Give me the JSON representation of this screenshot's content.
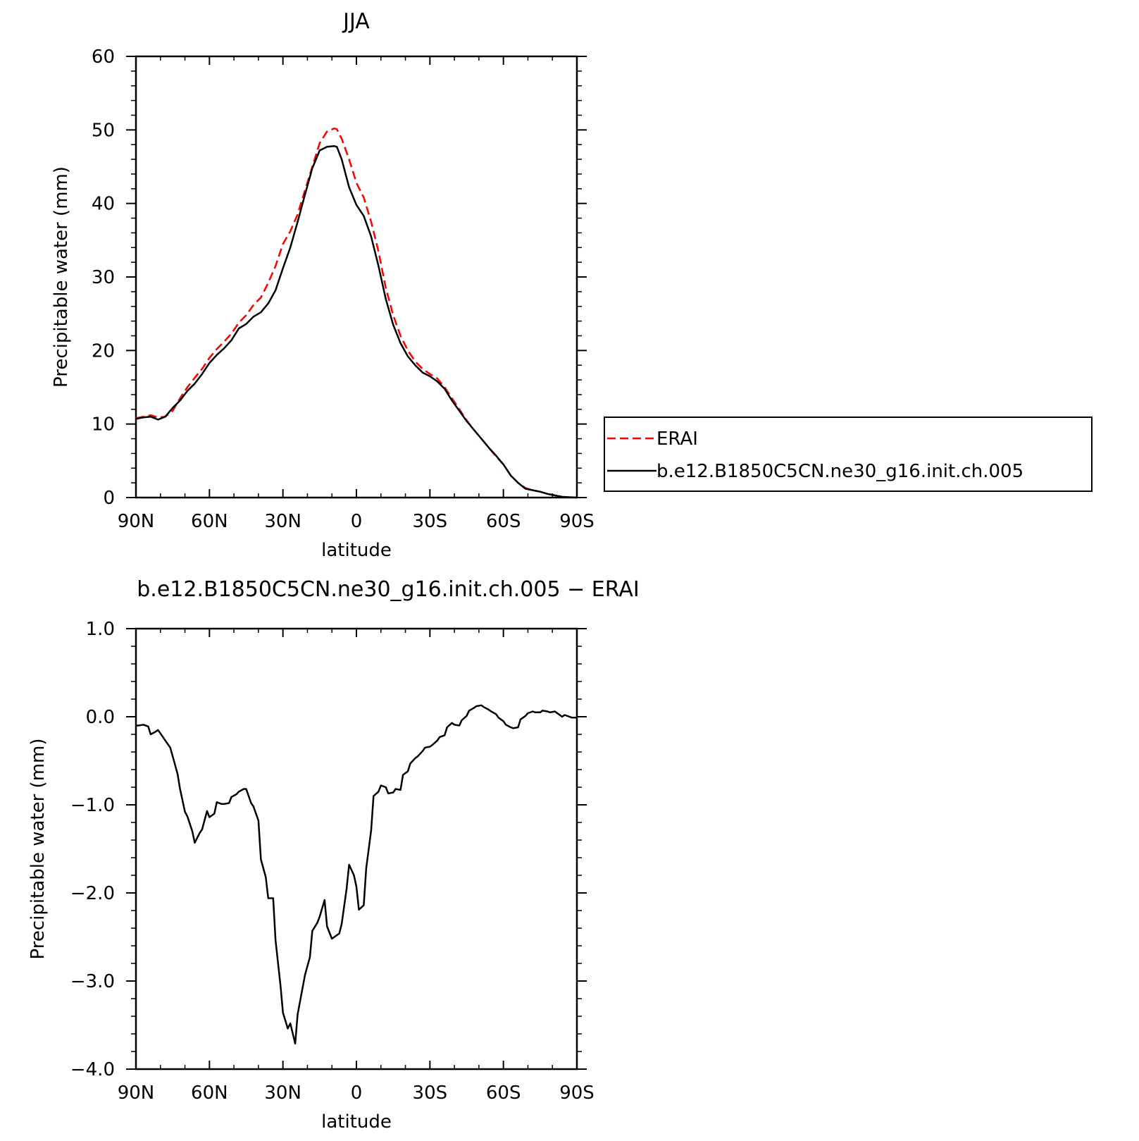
{
  "chart_data": [
    {
      "type": "line",
      "title": "JJA",
      "xlabel": "latitude",
      "ylabel": "Precipitable water (mm)",
      "xlim": [
        90,
        -90
      ],
      "ylim": [
        0,
        60
      ],
      "xticks": [
        90,
        60,
        30,
        0,
        -30,
        -60,
        -90
      ],
      "xtick_labels": [
        "90N",
        "60N",
        "30N",
        "0",
        "30S",
        "60S",
        "90S"
      ],
      "yticks": [
        0,
        10,
        20,
        30,
        40,
        50,
        60
      ],
      "ytick_labels": [
        "0",
        "10",
        "20",
        "30",
        "40",
        "50",
        "60"
      ],
      "grid": false,
      "legend": {
        "placement": "outside-right",
        "entries": [
          "ERAI",
          "b.e12.B1850C5CN.ne30_g16.init.ch.005"
        ]
      },
      "series": [
        {
          "name": "ERAI",
          "color": "#ff0000",
          "dash": "dashed",
          "x": [
            90,
            87,
            84,
            81,
            78,
            75,
            72,
            69,
            66,
            63,
            60,
            57,
            54,
            51,
            48,
            45,
            42,
            39,
            36,
            33,
            30,
            27,
            24,
            21,
            18,
            15,
            12,
            9,
            8,
            6,
            3,
            0,
            -3,
            -6,
            -9,
            -12,
            -15,
            -18,
            -21,
            -24,
            -27,
            -30,
            -33,
            -36,
            -39,
            -42,
            -45,
            -48,
            -51,
            -54,
            -57,
            -60,
            -63,
            -66,
            -69,
            -72,
            -75,
            -78,
            -81,
            -84,
            -87,
            -90
          ],
          "y": [
            10.8,
            11.0,
            11.2,
            10.9,
            11.0,
            11.8,
            13.5,
            15.0,
            16.3,
            17.5,
            19.0,
            20.2,
            21.2,
            22.3,
            23.8,
            24.8,
            26.2,
            27.2,
            29.2,
            31.5,
            34.5,
            36.2,
            38.5,
            41.8,
            45.0,
            48.2,
            49.8,
            50.2,
            50.1,
            48.8,
            46.0,
            42.8,
            40.8,
            37.5,
            33.5,
            28.5,
            24.8,
            22.0,
            20.0,
            18.5,
            17.5,
            16.8,
            16.2,
            15.0,
            13.5,
            12.0,
            10.5,
            9.2,
            8.0,
            6.8,
            5.6,
            4.5,
            3.0,
            2.0,
            1.3,
            1.0,
            0.8,
            0.5,
            0.3,
            0.1,
            0.05,
            0.0
          ]
        },
        {
          "name": "b.e12.B1850C5CN.ne30_g16.init.ch.005",
          "color": "#000000",
          "dash": "solid",
          "x": [
            90,
            87,
            84,
            81,
            78,
            75,
            72,
            69,
            66,
            63,
            60,
            57,
            54,
            51,
            48,
            45,
            42,
            39,
            36,
            33,
            30,
            27,
            24,
            21,
            18,
            15,
            12,
            9,
            8,
            6,
            3,
            0,
            -3,
            -6,
            -9,
            -12,
            -15,
            -18,
            -21,
            -24,
            -27,
            -30,
            -33,
            -36,
            -39,
            -42,
            -45,
            -48,
            -51,
            -54,
            -57,
            -60,
            -63,
            -66,
            -69,
            -72,
            -75,
            -78,
            -81,
            -84,
            -87,
            -90
          ],
          "y": [
            10.7,
            10.9,
            11.0,
            10.6,
            11.0,
            12.2,
            13.2,
            14.5,
            15.5,
            16.8,
            18.3,
            19.4,
            20.3,
            21.4,
            23.0,
            23.6,
            24.6,
            25.2,
            26.4,
            28.2,
            31.2,
            34.0,
            37.5,
            41.2,
            44.8,
            47.2,
            47.7,
            47.8,
            47.7,
            46.0,
            42.2,
            39.8,
            38.3,
            35.5,
            31.5,
            27.0,
            23.5,
            21.0,
            19.2,
            18.0,
            17.0,
            16.5,
            15.8,
            14.8,
            13.2,
            11.8,
            10.4,
            9.2,
            8.0,
            6.8,
            5.7,
            4.5,
            3.0,
            2.0,
            1.2,
            1.0,
            0.8,
            0.5,
            0.3,
            0.1,
            0.05,
            0.0
          ]
        }
      ]
    },
    {
      "type": "line",
      "title": "b.e12.B1850C5CN.ne30_g16.init.ch.005 − ERAI",
      "xlabel": "latitude",
      "ylabel": "Precipitable water (mm)",
      "xlim": [
        90,
        -90
      ],
      "ylim": [
        -4.0,
        1.0
      ],
      "xticks": [
        90,
        60,
        30,
        0,
        -30,
        -60,
        -90
      ],
      "xtick_labels": [
        "90N",
        "60N",
        "30N",
        "0",
        "30S",
        "60S",
        "90S"
      ],
      "yticks": [
        1.0,
        0.0,
        -1.0,
        -2.0,
        -3.0,
        -4.0
      ],
      "ytick_labels": [
        "1.0",
        "0.0",
        "−1.0",
        "−2.0",
        "−3.0",
        "−4.0"
      ],
      "grid": false,
      "series": [
        {
          "color": "#000000",
          "dash": "solid",
          "x": [
            90,
            89,
            87,
            85,
            84,
            82,
            81,
            79,
            78,
            76,
            75,
            73,
            72,
            70,
            69,
            67,
            66,
            64,
            63,
            61,
            60,
            58,
            57,
            55,
            54,
            52,
            51,
            49,
            48,
            46,
            45,
            43,
            42,
            40,
            39,
            37,
            36,
            34,
            33,
            31,
            30,
            28,
            27,
            25,
            24,
            22,
            21,
            19,
            18,
            16,
            15,
            13,
            12,
            10,
            9,
            7,
            6,
            4,
            3,
            1,
            0,
            -1,
            -3,
            -4,
            -6,
            -7,
            -9,
            -10,
            -12,
            -13,
            -15,
            -16,
            -18,
            -19,
            -21,
            -22,
            -24,
            -25,
            -27,
            -28,
            -30,
            -31,
            -33,
            -34,
            -36,
            -37,
            -39,
            -40,
            -42,
            -43,
            -45,
            -46,
            -48,
            -49,
            -51,
            -52,
            -54,
            -55,
            -57,
            -58,
            -60,
            -61,
            -63,
            -64,
            -66,
            -67,
            -69,
            -70,
            -72,
            -73,
            -75,
            -76,
            -78,
            -79,
            -81,
            -82,
            -84,
            -85,
            -87,
            -88,
            -90
          ],
          "y": [
            -0.1,
            -0.1,
            -0.09,
            -0.11,
            -0.2,
            -0.17,
            -0.15,
            -0.23,
            -0.27,
            -0.35,
            -0.45,
            -0.65,
            -0.82,
            -1.08,
            -1.13,
            -1.3,
            -1.43,
            -1.32,
            -1.28,
            -1.07,
            -1.14,
            -1.1,
            -0.97,
            -0.99,
            -0.99,
            -0.98,
            -0.91,
            -0.88,
            -0.85,
            -0.82,
            -0.82,
            -0.98,
            -1.02,
            -1.18,
            -1.62,
            -1.82,
            -2.06,
            -2.06,
            -2.54,
            -3.05,
            -3.36,
            -3.54,
            -3.48,
            -3.71,
            -3.38,
            -3.08,
            -2.93,
            -2.73,
            -2.43,
            -2.34,
            -2.27,
            -2.08,
            -2.38,
            -2.52,
            -2.5,
            -2.46,
            -2.35,
            -1.95,
            -1.68,
            -1.8,
            -1.93,
            -2.19,
            -2.14,
            -1.72,
            -1.29,
            -0.9,
            -0.85,
            -0.78,
            -0.8,
            -0.87,
            -0.86,
            -0.82,
            -0.83,
            -0.66,
            -0.62,
            -0.53,
            -0.47,
            -0.45,
            -0.39,
            -0.35,
            -0.34,
            -0.32,
            -0.27,
            -0.23,
            -0.21,
            -0.12,
            -0.07,
            -0.09,
            -0.1,
            -0.04,
            0.01,
            0.07,
            0.1,
            0.12,
            0.13,
            0.11,
            0.08,
            0.06,
            0.03,
            -0.01,
            -0.05,
            -0.09,
            -0.12,
            -0.13,
            -0.12,
            -0.03,
            0.01,
            0.04,
            0.06,
            0.05,
            0.05,
            0.07,
            0.06,
            0.05,
            0.06,
            0.04,
            0.0,
            0.02,
            0.0,
            -0.01,
            -0.01
          ]
        }
      ]
    }
  ]
}
